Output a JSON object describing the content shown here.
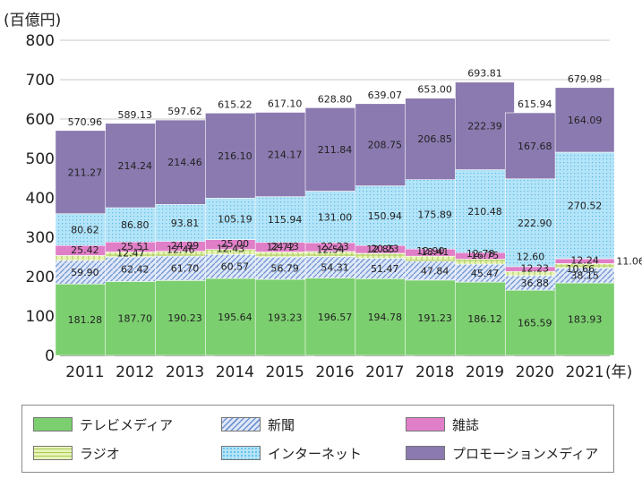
{
  "chart_data": {
    "type": "bar",
    "stacked": true,
    "unit_label": "(百億円)",
    "x_suffix": "(年)",
    "categories": [
      "2011",
      "2012",
      "2013",
      "2014",
      "2015",
      "2016",
      "2017",
      "2018",
      "2019",
      "2020",
      "2021"
    ],
    "category_tick_labels": [
      "2011",
      "2012",
      "2013",
      "2014",
      "2015",
      "2016",
      "2017",
      "2018",
      "2019",
      "2020",
      "2021"
    ],
    "ylim": [
      0,
      800
    ],
    "y_ticks": [
      "0",
      "100",
      "200",
      "300",
      "400",
      "500",
      "600",
      "700",
      "800"
    ],
    "grid": true,
    "legend_position": "bottom",
    "totals": [
      "570.96",
      "589.13",
      "597.62",
      "615.22",
      "617.10",
      "628.80",
      "639.07",
      "653.00",
      "693.81",
      "615.94",
      "679.98"
    ],
    "series": [
      {
        "name": "テレビメディア",
        "color": "#7ccf6f",
        "values": [
          181.28,
          187.7,
          190.23,
          195.64,
          193.23,
          196.57,
          194.78,
          191.23,
          186.12,
          165.59,
          183.93
        ],
        "labels": [
          "181.28",
          "187.70",
          "190.23",
          "195.64",
          "193.23",
          "196.57",
          "194.78",
          "191.23",
          "186.12",
          "165.59",
          "183.93"
        ]
      },
      {
        "name": "新聞",
        "color": "#c9d8f1",
        "values": [
          59.9,
          62.42,
          61.7,
          60.57,
          56.79,
          54.31,
          51.47,
          47.84,
          45.47,
          36.88,
          38.15
        ],
        "labels": [
          "59.90",
          "62.42",
          "61.70",
          "60.57",
          "56.79",
          "54.31",
          "51.47",
          "47.84",
          "45.47",
          "36.88",
          "38.15"
        ]
      },
      {
        "name": "ラジオ",
        "color": "#dcef9a",
        "values": [
          12.47,
          12.46,
          12.43,
          12.72,
          12.54,
          12.85,
          12.9,
          12.78,
          12.6,
          10.66,
          11.06
        ],
        "labels": [
          "12.47",
          "12.46",
          "12.43",
          "12.72",
          "12.54",
          "12.85",
          "12.90",
          "12.78",
          "12.60",
          "10.66",
          "11.06"
        ]
      },
      {
        "name": "雑誌",
        "color": "#e07fc8",
        "values": [
          25.42,
          25.51,
          24.99,
          25.0,
          24.43,
          22.23,
          20.23,
          18.41,
          16.75,
          12.23,
          12.24
        ],
        "labels": [
          "25.42",
          "25.51",
          "24.99",
          "25.00",
          "24.43",
          "22.23",
          "20.23",
          "18.41",
          "16.75",
          "12.23",
          "12.24"
        ]
      },
      {
        "name": "インターネット",
        "color": "#8fd3f2",
        "values": [
          80.62,
          86.8,
          93.81,
          105.19,
          115.94,
          131.0,
          150.94,
          175.89,
          210.48,
          222.9,
          270.52
        ],
        "labels": [
          "80.62",
          "86.80",
          "93.81",
          "105.19",
          "115.94",
          "131.00",
          "150.94",
          "175.89",
          "210.48",
          "222.90",
          "270.52"
        ]
      },
      {
        "name": "プロモーションメディア",
        "color": "#8b7ab0",
        "values": [
          211.27,
          214.24,
          214.46,
          216.1,
          214.17,
          211.84,
          208.75,
          206.85,
          222.39,
          167.68,
          164.09
        ],
        "labels": [
          "211.27",
          "214.24",
          "214.46",
          "216.10",
          "214.17",
          "211.84",
          "208.75",
          "206.85",
          "222.39",
          "167.68",
          "164.09"
        ]
      }
    ],
    "legend": [
      {
        "name": "テレビメディア",
        "color": "#7ccf6f"
      },
      {
        "name": "新聞",
        "color": "#c9d8f1"
      },
      {
        "name": "雑誌",
        "color": "#e07fc8"
      },
      {
        "name": "ラジオ",
        "color": "#dcef9a"
      },
      {
        "name": "インターネット",
        "color": "#8fd3f2"
      },
      {
        "name": "プロモーションメディア",
        "color": "#8b7ab0"
      }
    ]
  }
}
